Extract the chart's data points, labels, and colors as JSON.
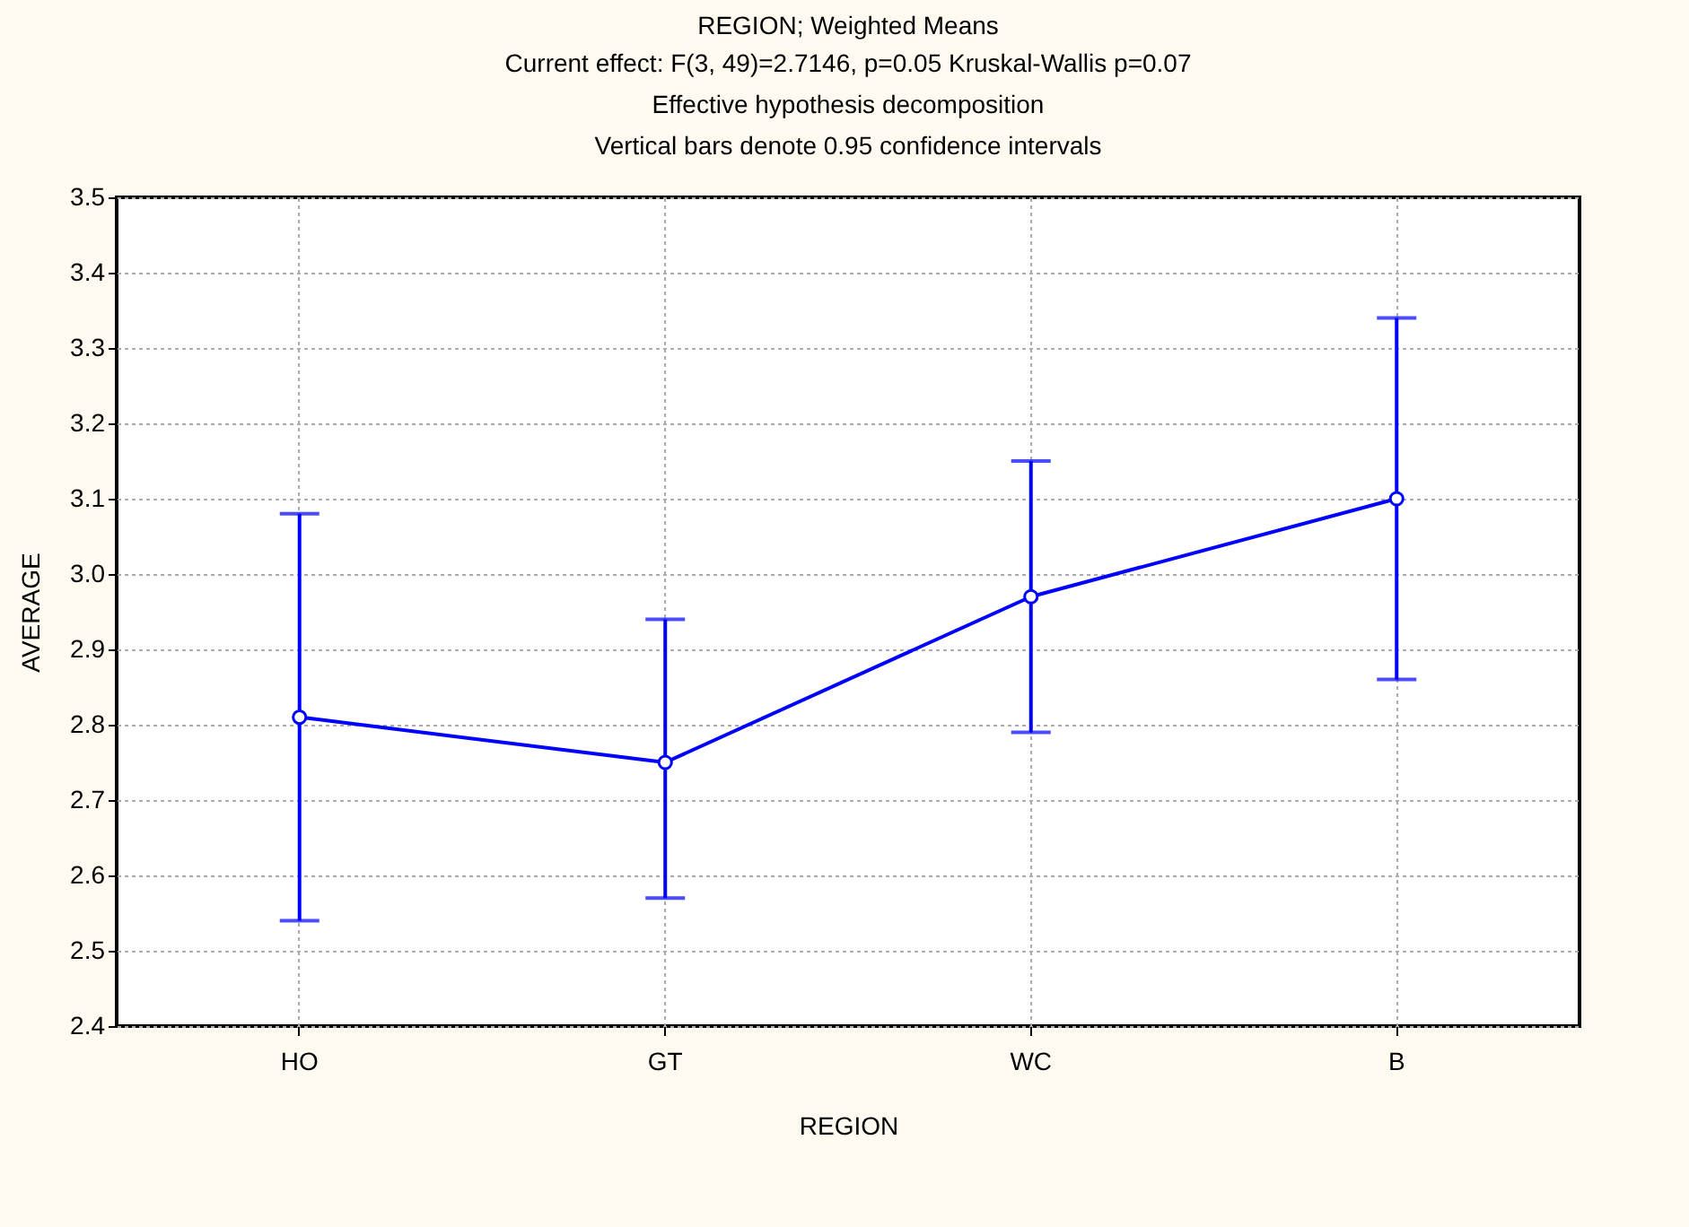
{
  "chart_data": {
    "type": "line",
    "title": "REGION; Weighted Means",
    "subtitle": "Current effect: F(3, 49)=2.7146, p=0.05 Kruskal-Wallis p=0.07",
    "annotations": [
      "Effective hypothesis decomposition",
      "Vertical bars denote 0.95 confidence intervals"
    ],
    "xlabel": "REGION",
    "ylabel": "AVERAGE",
    "categories": [
      "HO",
      "GT",
      "WC",
      "B"
    ],
    "series": [
      {
        "color": "#0000ff",
        "values": [
          2.81,
          2.75,
          2.97,
          3.1
        ],
        "errors": [
          [
            2.54,
            3.08
          ],
          [
            2.57,
            2.94
          ],
          [
            2.79,
            3.15
          ],
          [
            2.86,
            3.34
          ]
        ]
      }
    ],
    "ylim": [
      2.4,
      3.5
    ],
    "yticks": [
      2.4,
      2.5,
      2.6,
      2.7,
      2.8,
      2.9,
      {
        "value": 3,
        "label": "3.0"
      },
      3.1,
      3.2,
      3.3,
      3.4,
      3.5
    ],
    "grid": true,
    "marker": "circle",
    "line_style": "solid"
  }
}
